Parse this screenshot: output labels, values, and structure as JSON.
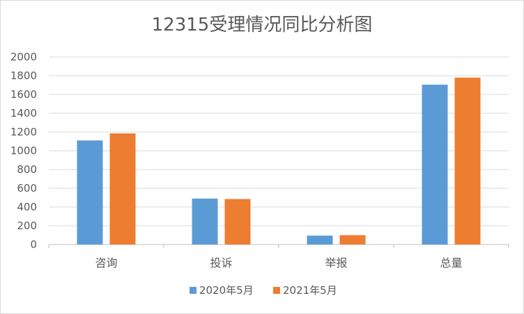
{
  "chart_data": {
    "type": "bar",
    "title": "12315受理情况同比分析图",
    "categories": [
      "咨询",
      "投诉",
      "举报",
      "总量"
    ],
    "series": [
      {
        "name": "2020年5月",
        "color": "#5b9bd5",
        "values": [
          1110,
          490,
          95,
          1705
        ]
      },
      {
        "name": "2021年5月",
        "color": "#ed7d31",
        "values": [
          1185,
          485,
          100,
          1780
        ]
      }
    ],
    "ylim": [
      0,
      2000
    ],
    "yticks": [
      0,
      200,
      400,
      600,
      800,
      1000,
      1200,
      1400,
      1600,
      1800,
      2000
    ],
    "grid": true,
    "legend": "bottom"
  }
}
